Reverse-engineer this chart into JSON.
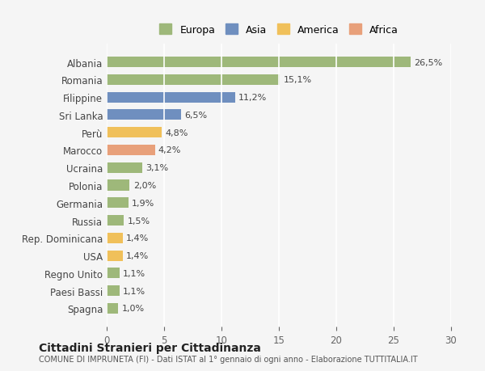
{
  "categories": [
    "Albania",
    "Romania",
    "Filippine",
    "Sri Lanka",
    "Perù",
    "Marocco",
    "Ucraina",
    "Polonia",
    "Germania",
    "Russia",
    "Rep. Dominicana",
    "USA",
    "Regno Unito",
    "Paesi Bassi",
    "Spagna"
  ],
  "values": [
    26.5,
    15.1,
    11.2,
    6.5,
    4.8,
    4.2,
    3.1,
    2.0,
    1.9,
    1.5,
    1.4,
    1.4,
    1.1,
    1.1,
    1.0
  ],
  "labels": [
    "26,5%",
    "15,1%",
    "11,2%",
    "6,5%",
    "4,8%",
    "4,2%",
    "3,1%",
    "2,0%",
    "1,9%",
    "1,5%",
    "1,4%",
    "1,4%",
    "1,1%",
    "1,1%",
    "1,0%"
  ],
  "continent": [
    "Europa",
    "Europa",
    "Asia",
    "Asia",
    "America",
    "Africa",
    "Europa",
    "Europa",
    "Europa",
    "Europa",
    "America",
    "America",
    "Europa",
    "Europa",
    "Europa"
  ],
  "colors": {
    "Europa": "#9eb87a",
    "Asia": "#6f8fbf",
    "America": "#f0c05a",
    "Africa": "#e8a07a"
  },
  "legend_order": [
    "Europa",
    "Asia",
    "America",
    "Africa"
  ],
  "title": "Cittadini Stranieri per Cittadinanza",
  "subtitle": "COMUNE DI IMPRUNETA (FI) - Dati ISTAT al 1° gennaio di ogni anno - Elaborazione TUTTITALIA.IT",
  "xlim": [
    0,
    30
  ],
  "xticks": [
    0,
    5,
    10,
    15,
    20,
    25,
    30
  ],
  "background_color": "#f5f5f5",
  "grid_color": "#ffffff"
}
